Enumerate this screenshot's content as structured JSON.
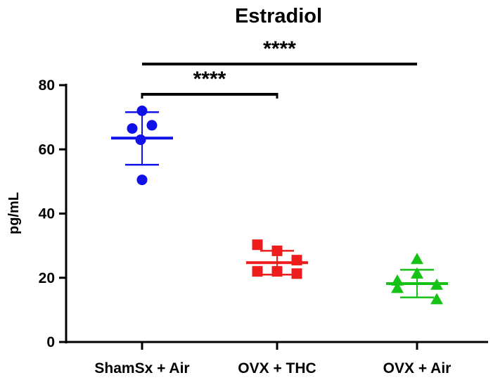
{
  "chart_data": {
    "type": "scatter",
    "title": "Estradiol",
    "ylabel": "pg/mL",
    "ylim": [
      0,
      80
    ],
    "yticks": [
      0,
      20,
      40,
      60,
      80
    ],
    "categories": [
      "ShamSx + Air",
      "OVX + THC",
      "OVX + Air"
    ],
    "groups": [
      {
        "category": "ShamSx + Air",
        "color": "#1010e8",
        "marker": "circle",
        "points": [
          72,
          67.5,
          66.5,
          63,
          50.5
        ],
        "mean": 63.5,
        "error_low": 55.2,
        "error_high": 71.6
      },
      {
        "category": "OVX + THC",
        "color": "#ee1c1c",
        "marker": "square",
        "points": [
          30.3,
          28.4,
          25.5,
          22,
          22,
          21.3
        ],
        "mean": 24.7,
        "error_low": 21,
        "error_high": 28.4
      },
      {
        "category": "OVX + Air",
        "color": "#16c216",
        "marker": "triangle",
        "points": [
          25.8,
          21.3,
          19.1,
          17.8,
          16.8,
          13.3
        ],
        "mean": 18.2,
        "error_low": 13.9,
        "error_high": 22.5
      }
    ],
    "significance": [
      {
        "from": "ShamSx + Air",
        "to": "OVX + THC",
        "label": "****"
      },
      {
        "from": "ShamSx + Air",
        "to": "OVX + Air",
        "label": "****"
      }
    ],
    "grid": false,
    "legend": "none"
  }
}
